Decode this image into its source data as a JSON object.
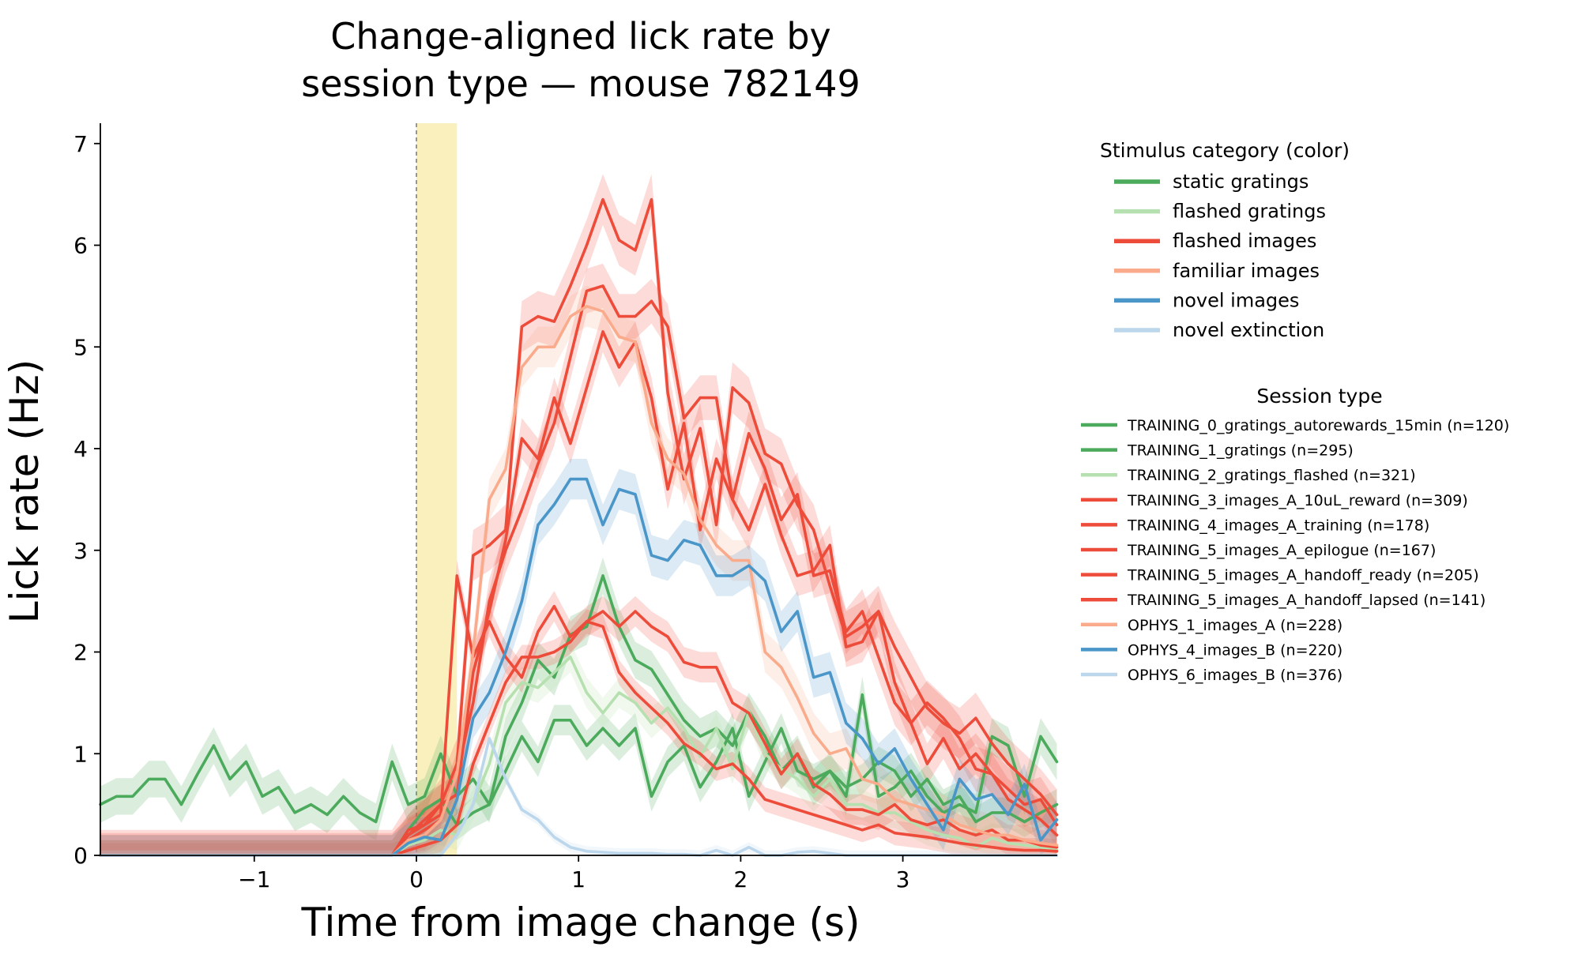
{
  "chart_data": {
    "type": "line",
    "title_lines": [
      "Change-aligned lick rate by",
      "session type — mouse 782149"
    ],
    "xlabel": "Time from image change (s)",
    "ylabel": "Lick rate (Hz)",
    "xlim": [
      -1.95,
      3.95
    ],
    "ylim": [
      0,
      7.2
    ],
    "x_ticks": [
      -1,
      0,
      1,
      2,
      3
    ],
    "x_tick_labels": [
      "−1",
      "0",
      "1",
      "2",
      "3"
    ],
    "y_ticks": [
      0,
      1,
      2,
      3,
      4,
      5,
      6,
      7
    ],
    "y_tick_labels": [
      "0",
      "1",
      "2",
      "3",
      "4",
      "5",
      "6",
      "7"
    ],
    "change_marker_x": 0,
    "stimulus_window": [
      0,
      0.25
    ],
    "stimulus_window_color": "#faf0be",
    "grid": false,
    "legend_placement": "outside-right",
    "color_legend": {
      "title": "Stimulus category (color)",
      "items": [
        {
          "label": "static gratings",
          "color": "#4caa5c"
        },
        {
          "label": "flashed gratings",
          "color": "#b7e0b0"
        },
        {
          "label": "flashed images",
          "color": "#ee4c3a"
        },
        {
          "label": "familiar images",
          "color": "#f9ab8c"
        },
        {
          "label": "novel images",
          "color": "#4a96c9"
        },
        {
          "label": "novel extinction",
          "color": "#bcd7ec"
        }
      ]
    },
    "session_legend": {
      "title": "Session type",
      "items": [
        {
          "label": "TRAINING_0_gratings_autorewards_15min  (n=120)",
          "color": "#4caa5c"
        },
        {
          "label": "TRAINING_1_gratings  (n=295)",
          "color": "#4caa5c"
        },
        {
          "label": "TRAINING_2_gratings_flashed  (n=321)",
          "color": "#b7e0b0"
        },
        {
          "label": "TRAINING_3_images_A_10uL_reward  (n=309)",
          "color": "#ee4c3a"
        },
        {
          "label": "TRAINING_4_images_A_training  (n=178)",
          "color": "#ee4c3a"
        },
        {
          "label": "TRAINING_5_images_A_epilogue  (n=167)",
          "color": "#ee4c3a"
        },
        {
          "label": "TRAINING_5_images_A_handoff_ready  (n=205)",
          "color": "#ee4c3a"
        },
        {
          "label": "TRAINING_5_images_A_handoff_lapsed  (n=141)",
          "color": "#ee4c3a"
        },
        {
          "label": "OPHYS_1_images_A  (n=228)",
          "color": "#f9ab8c"
        },
        {
          "label": "OPHYS_4_images_B  (n=220)",
          "color": "#4a96c9"
        },
        {
          "label": "OPHYS_6_images_B  (n=376)",
          "color": "#bcd7ec"
        }
      ]
    },
    "series_x": {
      "start": -1.95,
      "step": 0.1,
      "count": 60
    },
    "series": [
      {
        "name": "TRAINING_0_gratings_autorewards_15min  (n=120)",
        "color": "#4caa5c",
        "band": 0.18,
        "values": [
          0.5,
          0.58,
          0.58,
          0.75,
          0.75,
          0.5,
          0.8,
          1.08,
          0.75,
          0.92,
          0.58,
          0.67,
          0.42,
          0.5,
          0.4,
          0.58,
          0.42,
          0.33,
          0.92,
          0.5,
          0.58,
          1.0,
          0.58,
          0.75,
          0.5,
          1.17,
          1.5,
          1.92,
          1.75,
          2.17,
          2.25,
          2.75,
          2.25,
          1.92,
          1.83,
          1.58,
          1.33,
          1.17,
          1.25,
          1.08,
          1.42,
          1.17,
          0.83,
          1.0,
          0.67,
          0.83,
          0.58,
          1.58,
          0.58,
          0.67,
          0.83,
          0.58,
          0.42,
          0.5,
          0.42,
          1.17,
          1.08,
          0.58,
          1.17,
          0.92
        ]
      },
      {
        "name": "TRAINING_1_gratings  (n=295)",
        "color": "#4caa5c",
        "band": 0.15,
        "values": [
          0,
          0,
          0,
          0,
          0,
          0,
          0,
          0,
          0,
          0,
          0,
          0,
          0,
          0,
          0,
          0,
          0,
          0,
          0,
          0.25,
          0.45,
          0.55,
          0.3,
          0.42,
          0.5,
          0.83,
          1.17,
          0.92,
          1.33,
          1.33,
          1.08,
          1.25,
          1.08,
          1.25,
          0.58,
          0.92,
          1.08,
          0.67,
          0.92,
          1.25,
          0.58,
          0.92,
          1.25,
          0.83,
          0.75,
          0.83,
          0.67,
          0.75,
          0.92,
          0.83,
          0.58,
          0.75,
          0.5,
          0.58,
          0.33,
          0.42,
          0.42,
          0.33,
          0.42,
          0.5
        ]
      },
      {
        "name": "TRAINING_2_gratings_flashed  (n=321)",
        "color": "#b7e0b0",
        "band": 0.15,
        "values": [
          0,
          0,
          0,
          0,
          0,
          0,
          0,
          0,
          0,
          0,
          0,
          0,
          0,
          0,
          0,
          0,
          0,
          0,
          0,
          0.1,
          0.15,
          0.25,
          0.2,
          0.5,
          0.9,
          1.5,
          1.7,
          1.65,
          1.8,
          1.95,
          1.6,
          1.4,
          1.6,
          1.5,
          1.3,
          1.45,
          1.25,
          0.97,
          1.25,
          0.85,
          1.42,
          1.0,
          0.85,
          0.75,
          0.58,
          0.75,
          0.5,
          0.5,
          0.42,
          0.42,
          0.33,
          0.25,
          0.2,
          0.17,
          0.08,
          0.17,
          0.12,
          0.1,
          0.08,
          0.05
        ]
      },
      {
        "name": "TRAINING_3_images_A_10uL_reward  (n=309)",
        "color": "#ee4c3a",
        "band": 0.22,
        "values": [
          0,
          0,
          0,
          0,
          0,
          0,
          0,
          0,
          0,
          0,
          0,
          0,
          0,
          0,
          0,
          0,
          0,
          0,
          0,
          0.15,
          0.25,
          0.35,
          0.8,
          1.5,
          2.5,
          3.0,
          3.4,
          3.85,
          4.25,
          4.9,
          5.55,
          5.6,
          5.3,
          5.3,
          5.45,
          5.2,
          4.3,
          4.5,
          4.5,
          3.5,
          4.15,
          3.8,
          3.3,
          3.55,
          2.75,
          2.8,
          2.2,
          2.4,
          1.95,
          1.5,
          1.3,
          1.5,
          1.35,
          1.15,
          0.85,
          0.8,
          0.65,
          0.5,
          0.55,
          0.3
        ]
      },
      {
        "name": "TRAINING_4_images_A_training  (n=178)",
        "color": "#ee4c3a",
        "band": 0.2,
        "values": [
          0,
          0,
          0,
          0,
          0,
          0,
          0,
          0,
          0,
          0,
          0,
          0,
          0,
          0,
          0,
          0,
          0,
          0,
          0,
          0.2,
          0.35,
          0.5,
          0.6,
          1.8,
          2.4,
          3.1,
          4.1,
          3.9,
          4.5,
          4.05,
          4.6,
          5.15,
          4.8,
          5.05,
          4.5,
          3.6,
          4.25,
          3.2,
          3.9,
          3.5,
          3.2,
          3.65,
          3.15,
          2.75,
          2.8,
          3.05,
          2.05,
          2.1,
          2.4,
          1.7,
          1.3,
          0.9,
          1.15,
          0.85,
          1.0,
          0.8,
          0.55,
          0.45,
          0.35,
          0.2
        ]
      },
      {
        "name": "TRAINING_5_images_A_epilogue  (n=167)",
        "color": "#ee4c3a",
        "band": 0.25,
        "values": [
          0,
          0,
          0,
          0,
          0,
          0,
          0,
          0,
          0,
          0,
          0,
          0,
          0,
          0,
          0,
          0,
          0,
          0,
          0,
          0.25,
          0.3,
          0.5,
          0.9,
          2.95,
          3.05,
          3.2,
          5.2,
          5.3,
          5.25,
          5.6,
          6.0,
          6.45,
          6.05,
          5.95,
          6.45,
          4.55,
          3.7,
          4.2,
          3.25,
          4.6,
          4.45,
          3.95,
          3.85,
          3.45,
          3.2,
          2.65,
          2.15,
          2.25,
          2.4,
          2.05,
          1.75,
          1.45,
          1.3,
          1.2,
          1.35,
          1.1,
          0.9,
          0.75,
          0.6,
          0.4
        ]
      },
      {
        "name": "TRAINING_5_images_A_handoff_ready  (n=205)",
        "color": "#ee4c3a",
        "band": 0.15,
        "values": [
          0,
          0,
          0,
          0,
          0,
          0,
          0,
          0,
          0,
          0,
          0,
          0,
          0,
          0,
          0,
          0,
          0,
          0,
          0,
          0.2,
          0.3,
          0.4,
          2.75,
          1.95,
          2.3,
          1.95,
          1.75,
          2.2,
          2.45,
          2.15,
          2.3,
          2.4,
          2.25,
          2.4,
          2.25,
          2.15,
          1.9,
          1.85,
          1.85,
          1.5,
          1.4,
          1.1,
          0.8,
          1.0,
          0.7,
          0.6,
          0.45,
          0.45,
          0.4,
          0.5,
          0.35,
          0.3,
          0.35,
          0.25,
          0.2,
          0.25,
          0.15,
          0.15,
          0.1,
          0.08
        ]
      },
      {
        "name": "TRAINING_5_images_A_handoff_lapsed  (n=141)",
        "color": "#ee4c3a",
        "band": 0.12,
        "values": [
          0,
          0,
          0,
          0,
          0,
          0,
          0,
          0,
          0,
          0,
          0,
          0,
          0,
          0,
          0,
          0,
          0,
          0,
          0,
          0.05,
          0.1,
          0.15,
          0.3,
          0.9,
          1.3,
          1.7,
          1.95,
          1.95,
          2.0,
          2.1,
          2.3,
          2.25,
          1.8,
          1.6,
          1.45,
          1.3,
          1.1,
          1.0,
          0.85,
          0.9,
          0.75,
          0.55,
          0.5,
          0.45,
          0.4,
          0.35,
          0.3,
          0.25,
          0.3,
          0.22,
          0.2,
          0.18,
          0.15,
          0.12,
          0.1,
          0.08,
          0.06,
          0.05,
          0.05,
          0.04
        ]
      },
      {
        "name": "OPHYS_1_images_A  (n=228)",
        "color": "#f9ab8c",
        "band": 0.2,
        "values": [
          0,
          0,
          0,
          0,
          0,
          0,
          0,
          0,
          0,
          0,
          0,
          0,
          0,
          0,
          0,
          0,
          0,
          0,
          0,
          0.15,
          0.2,
          0.35,
          0.8,
          2.0,
          3.5,
          3.8,
          4.8,
          5.0,
          5.0,
          5.3,
          5.4,
          5.35,
          5.1,
          5.05,
          4.25,
          3.9,
          3.75,
          3.3,
          3.05,
          2.9,
          2.9,
          2.0,
          1.85,
          1.55,
          1.2,
          1.0,
          1.05,
          0.75,
          0.7,
          0.55,
          0.5,
          0.45,
          0.4,
          0.3,
          0.25,
          0.2,
          0.2,
          0.15,
          0.12,
          0.1
        ]
      },
      {
        "name": "OPHYS_4_images_B  (n=220)",
        "color": "#4a96c9",
        "band": 0.2,
        "values": [
          0,
          0,
          0,
          0,
          0,
          0,
          0,
          0,
          0,
          0,
          0,
          0,
          0,
          0,
          0,
          0,
          0,
          0,
          0,
          0.12,
          0.18,
          0.15,
          0.55,
          1.35,
          1.6,
          2.0,
          2.5,
          3.25,
          3.45,
          3.7,
          3.7,
          3.25,
          3.6,
          3.55,
          2.95,
          2.9,
          3.1,
          3.05,
          2.75,
          2.75,
          2.85,
          2.7,
          2.2,
          2.4,
          1.75,
          1.8,
          1.3,
          1.15,
          0.9,
          1.05,
          0.75,
          0.5,
          0.25,
          0.75,
          0.55,
          0.6,
          0.4,
          0.7,
          0.15,
          0.35
        ]
      },
      {
        "name": "OPHYS_6_images_B  (n=376)",
        "color": "#bcd7ec",
        "band": 0.05,
        "values": [
          0,
          0,
          0,
          0,
          0,
          0,
          0,
          0,
          0,
          0,
          0,
          0,
          0,
          0,
          0,
          0,
          0,
          0,
          0,
          0,
          0,
          0,
          0.2,
          0.5,
          1.15,
          0.75,
          0.45,
          0.35,
          0.18,
          0.08,
          0.04,
          0.03,
          0.02,
          0.02,
          0.02,
          0.01,
          0.01,
          0.0,
          0.05,
          0.0,
          0.08,
          0.0,
          0.0,
          0.03,
          0.04,
          0.02,
          0.0,
          0.0,
          0.0,
          0.0,
          0.0,
          0.0,
          0.0,
          0.0,
          0.0,
          0.0,
          0.0,
          0.0,
          0.0,
          0.0
        ]
      }
    ]
  }
}
